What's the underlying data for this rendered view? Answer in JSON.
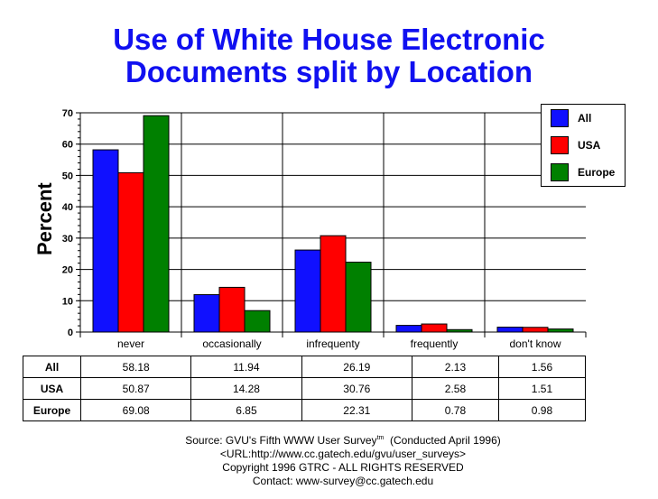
{
  "title_lines": [
    "Use of White House Electronic",
    "Documents split by Location"
  ],
  "ylabel": "Percent",
  "colors": {
    "All": "#1010ff",
    "USA": "#ff0000",
    "Europe": "#008000"
  },
  "legend": [
    {
      "label": "All",
      "color": "#1010ff"
    },
    {
      "label": "USA",
      "color": "#ff0000"
    },
    {
      "label": "Europe",
      "color": "#008000"
    }
  ],
  "table": {
    "rows": [
      {
        "label": "All",
        "values": [
          "58.18",
          "11.94",
          "26.19",
          "2.13",
          "1.56"
        ]
      },
      {
        "label": "USA",
        "values": [
          "50.87",
          "14.28",
          "30.76",
          "2.58",
          "1.51"
        ]
      },
      {
        "label": "Europe",
        "values": [
          "69.08",
          "6.85",
          "22.31",
          "0.78",
          "0.98"
        ]
      }
    ]
  },
  "footer": {
    "source_prefix": "Source: GVU's Fifth WWW User Survey",
    "tm": "tm",
    "source_suffix": "  (Conducted April 1996)",
    "url": "<URL:http://www.cc.gatech.edu/gvu/user_surveys>",
    "copyright": "Copyright 1996 GTRC -  ALL RIGHTS RESERVED",
    "contact": "Contact: www-survey@cc.gatech.edu"
  },
  "chart_data": {
    "type": "bar",
    "title": "Use of White House Electronic Documents split by Location",
    "xlabel": "",
    "ylabel": "Percent",
    "ylim": [
      0,
      70
    ],
    "yticks": [
      0,
      10,
      20,
      30,
      40,
      50,
      60,
      70
    ],
    "grid": true,
    "legend_position": "top-right",
    "categories": [
      "never",
      "occasionally",
      "infrequenty",
      "frequently",
      "don't know"
    ],
    "series": [
      {
        "name": "All",
        "color": "#1010ff",
        "values": [
          58.18,
          11.94,
          26.19,
          2.13,
          1.56
        ]
      },
      {
        "name": "USA",
        "color": "#ff0000",
        "values": [
          50.87,
          14.28,
          30.76,
          2.58,
          1.51
        ]
      },
      {
        "name": "Europe",
        "color": "#008000",
        "values": [
          69.08,
          6.85,
          22.31,
          0.78,
          0.98
        ]
      }
    ]
  }
}
